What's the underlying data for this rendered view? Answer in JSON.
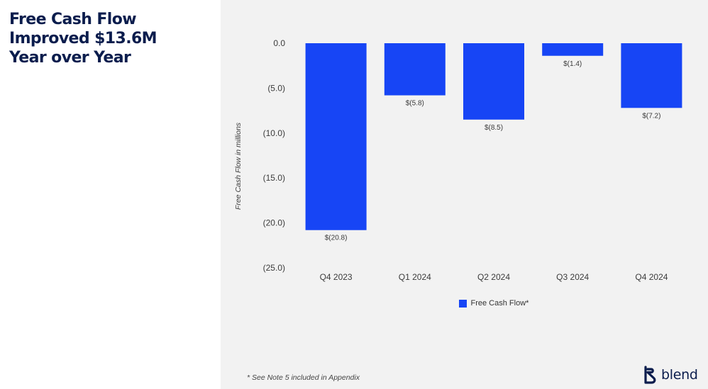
{
  "headline": {
    "lines": [
      "Free Cash Flow",
      "Improved $13.6M",
      "Year over Year"
    ]
  },
  "chart_data": {
    "type": "bar",
    "categories": [
      "Q4 2023",
      "Q1 2024",
      "Q2 2024",
      "Q3 2024",
      "Q4 2024"
    ],
    "series": [
      {
        "name": "Free Cash Flow*",
        "values": [
          -20.8,
          -5.8,
          -8.5,
          -1.4,
          -7.2
        ],
        "color": "#1745f5"
      }
    ],
    "data_labels": [
      "$(20.8)",
      "$(5.8)",
      "$(8.5)",
      "$(1.4)",
      "$(7.2)"
    ],
    "ylabel": "Free Cash Flow in millions",
    "ylim": [
      -25,
      0
    ],
    "yticks": [
      0,
      -5,
      -10,
      -15,
      -20,
      -25
    ],
    "ytick_labels": [
      "0.0",
      "(5.0)",
      "(10.0)",
      "(15.0)",
      "(20.0)",
      "(25.0)"
    ],
    "legend_position": "bottom",
    "grid": false
  },
  "footnote": "* See Note 5 included in Appendix",
  "logo": {
    "text": "blend",
    "color": "#0b1d4d"
  }
}
